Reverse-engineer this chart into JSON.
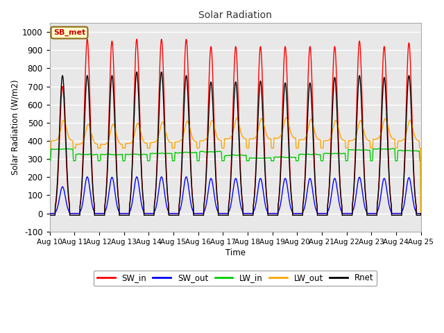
{
  "title": "Solar Radiation",
  "xlabel": "Time",
  "ylabel": "Solar Radiation (W/m2)",
  "ylim": [
    -100,
    1050
  ],
  "yticks": [
    -100,
    0,
    100,
    200,
    300,
    400,
    500,
    600,
    700,
    800,
    900,
    1000
  ],
  "x_tick_labels": [
    "Aug 10",
    "Aug 11",
    "Aug 12",
    "Aug 13",
    "Aug 14",
    "Aug 15",
    "Aug 16",
    "Aug 17",
    "Aug 18",
    "Aug 19",
    "Aug 20",
    "Aug 21",
    "Aug 22",
    "Aug 23",
    "Aug 24",
    "Aug 25"
  ],
  "SW_in_color": "#ff0000",
  "SW_out_color": "#0000ff",
  "LW_in_color": "#00cc00",
  "LW_out_color": "#ffa500",
  "Rnet_color": "#000000",
  "plot_bg_color": "#e8e8e8",
  "fig_bg_color": "#ffffff",
  "grid_color": "#ffffff",
  "legend_label": "SB_met",
  "legend_bg": "#ffffcc",
  "legend_border": "#8b6914",
  "n_days": 15,
  "dt_hours": 0.25,
  "SW_in_peak": 960,
  "LW_in_base": 340,
  "LW_out_base": 400,
  "line_width": 1.0
}
